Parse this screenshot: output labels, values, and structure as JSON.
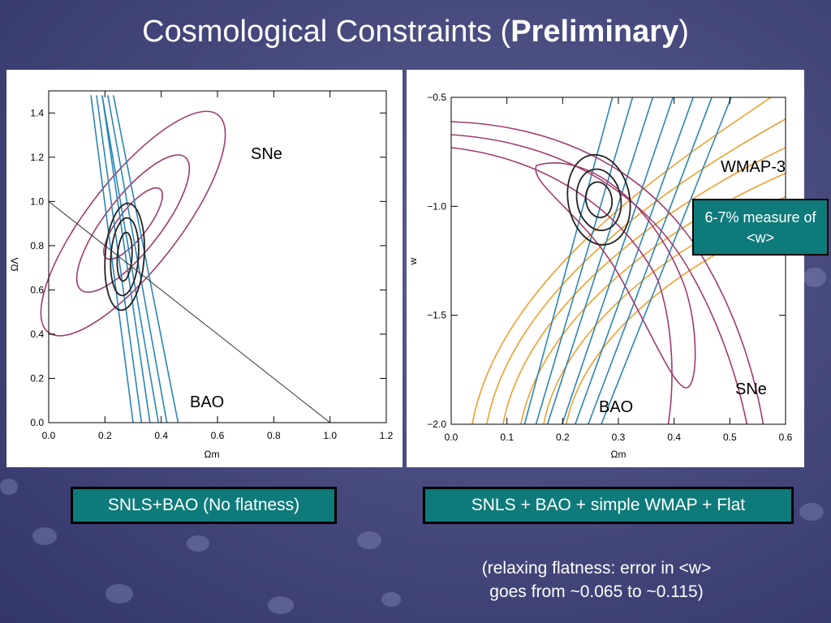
{
  "slide": {
    "title_main": "Cosmological Constraints (",
    "title_bold": "Preliminary",
    "title_end": ")",
    "caption_left": "SNLS+BAO (No flatness)",
    "caption_right": "SNLS + BAO + simple WMAP + Flat",
    "measure_box": "6-7% measure of <w>",
    "note_line1": "(relaxing flatness: error in <w>",
    "note_line2": "goes from ~0.065 to ~0.115)"
  },
  "chart_data": [
    {
      "type": "contour",
      "xlabel": "Ωm",
      "ylabel": "ΩΛ",
      "xlim": [
        0.0,
        1.2
      ],
      "ylim": [
        0.0,
        1.5
      ],
      "xticks": [
        "0.0",
        "0.2",
        "0.4",
        "0.6",
        "0.8",
        "1.0",
        "1.2"
      ],
      "yticks": [
        "0.0",
        "0.2",
        "0.4",
        "0.6",
        "0.8",
        "1.0",
        "1.2",
        "1.4"
      ],
      "annotations": [
        "SNe",
        "BAO"
      ],
      "colors": {
        "sne": "#a03c6e",
        "bao": "#2a86b4",
        "combined": "#222222"
      },
      "sne_center": [
        0.3,
        0.9
      ],
      "combined_center": [
        0.27,
        0.75
      ],
      "flat_line": [
        [
          0.0,
          1.0
        ],
        [
          1.0,
          0.0
        ]
      ]
    },
    {
      "type": "contour",
      "xlabel": "Ωm",
      "ylabel": "w",
      "xlim": [
        0.0,
        0.6
      ],
      "ylim": [
        -2.0,
        -0.5
      ],
      "xticks": [
        "0.0",
        "0.1",
        "0.2",
        "0.3",
        "0.4",
        "0.5",
        "0.6"
      ],
      "yticks": [
        "−2.0",
        "−1.5",
        "−1.0",
        "−0.5"
      ],
      "annotations": [
        "WMAP-3",
        "SNe",
        "BAO"
      ],
      "colors": {
        "sne": "#a03c6e",
        "bao": "#2a86b4",
        "wmap": "#f0a030",
        "combined": "#222222"
      },
      "combined_center": [
        0.265,
        -0.97
      ]
    }
  ]
}
